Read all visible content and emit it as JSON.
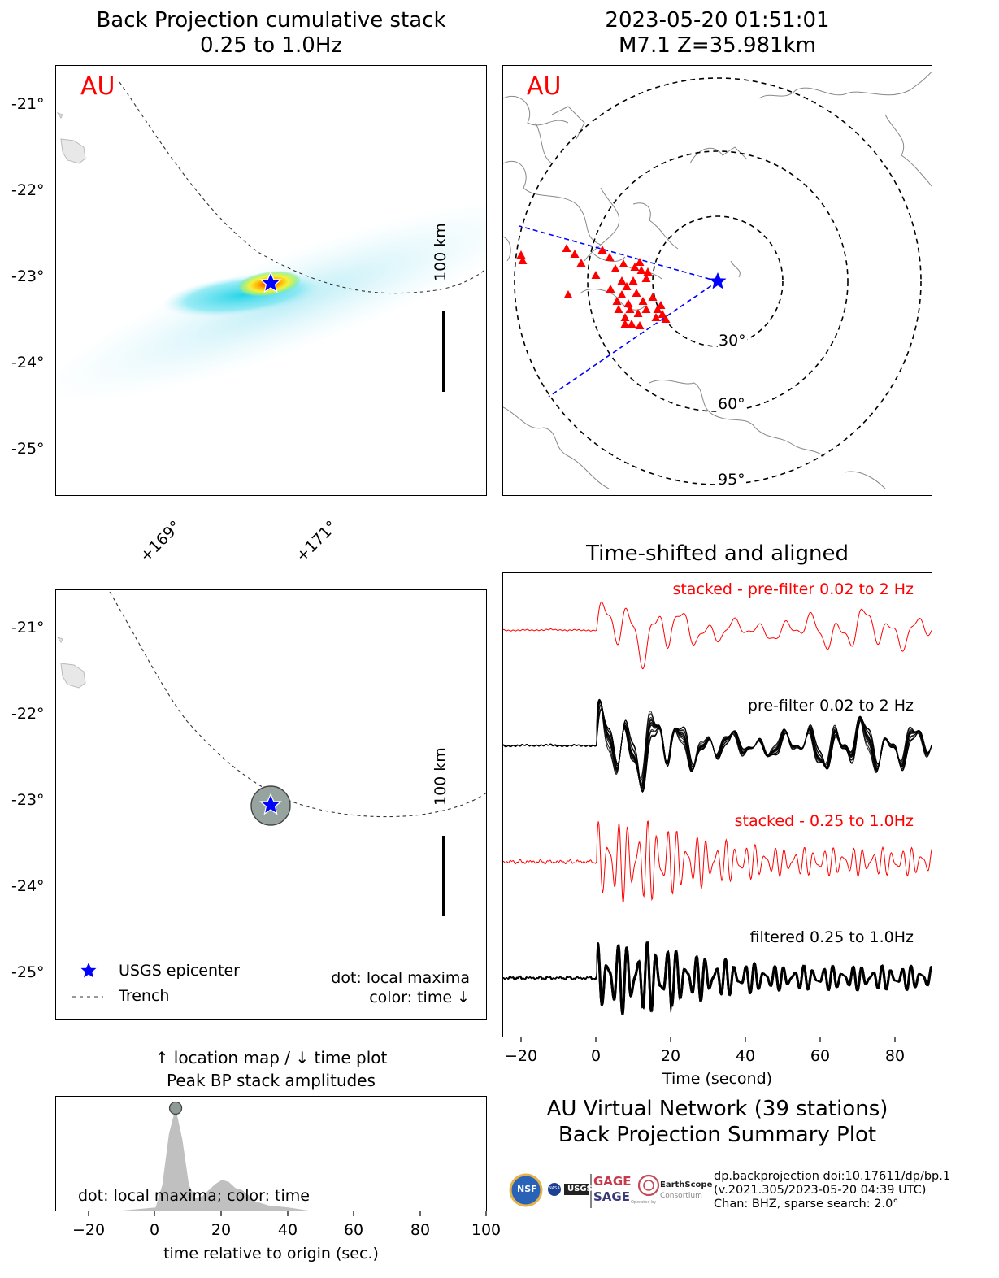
{
  "bp_map": {
    "title_line1": "Back Projection cumulative stack",
    "title_line2": "0.25 to 1.0Hz",
    "network_label": "AU",
    "lat_ticks": [
      "-21°",
      "-22°",
      "-23°",
      "-24°",
      "-25°"
    ],
    "lon_ticks": [
      "+169°",
      "+171°"
    ],
    "scale_label": "100 km"
  },
  "event_map": {
    "title_line1": "2023-05-20 01:51:01",
    "title_line2": "M7.1 Z=35.981km",
    "network_label": "AU",
    "ring_labels": [
      "30°",
      "60°",
      "95°"
    ]
  },
  "location_map": {
    "lat_ticks": [
      "-21°",
      "-22°",
      "-23°",
      "-24°",
      "-25°"
    ],
    "scale_label": "100 km",
    "legend_epicenter": "USGS epicenter",
    "legend_trench": "Trench",
    "note_line1": "dot: local maxima",
    "note_line2": "color: time ↓"
  },
  "waveforms": {
    "title": "Time-shifted and aligned",
    "trace_labels": [
      "stacked - pre-filter 0.02 to 2 Hz",
      "pre-filter 0.02 to 2 Hz",
      "stacked - 0.25 to 1.0Hz",
      "filtered 0.25 to 1.0Hz"
    ],
    "trace_colors": [
      "#ff0000",
      "#000000",
      "#ff0000",
      "#000000"
    ],
    "x_ticks": [
      "−20",
      "0",
      "20",
      "40",
      "60",
      "80"
    ],
    "xlabel": "Time (second)"
  },
  "amp_plot": {
    "title_line1": "↑ location map / ↓ time plot",
    "title_line2": "Peak BP stack amplitudes",
    "note": "dot: local maxima; color: time",
    "x_ticks": [
      "−20",
      "0",
      "20",
      "40",
      "60",
      "80",
      "100"
    ],
    "xlabel": "time relative to origin (sec.)"
  },
  "summary": {
    "line1": "AU Virtual Network (39 stations)",
    "line2": "Back Projection Summary Plot",
    "info_line1": "dp.backprojection doi:10.17611/dp/bp.1",
    "info_line2": "(v.2021.305/2023-05-20 04:39 UTC)",
    "info_line3": "Chan: BHZ, sparse search: 2.0°",
    "logo_gage": "GAGE",
    "logo_sage": "SAGE",
    "logo_nsf": "NSF",
    "logo_nasa": "NASA",
    "logo_usgs": "USGS",
    "logo_earthscope": "EarthScope",
    "logo_consortium": "Consortium",
    "logo_operated": "Operated by"
  },
  "chart_data": [
    {
      "type": "heatmap",
      "name": "back projection cumulative stack",
      "lat_ticks": [
        -21,
        -22,
        -23,
        -24,
        -25
      ],
      "lon_ticks": [
        169,
        171
      ],
      "epicenter": {
        "lon": 170.4,
        "lat": -23.1
      },
      "peak_region": {
        "lon": 170.4,
        "lat": -23.1
      }
    },
    {
      "type": "scatter",
      "name": "station map",
      "ring_distances_deg": [
        30,
        60,
        95
      ],
      "station_count": 39
    },
    {
      "type": "line",
      "name": "aligned traces",
      "x_axis": "Time (second)",
      "xlim": [
        -25,
        90
      ],
      "x_ticks": [
        -20,
        0,
        20,
        40,
        60,
        80
      ]
    },
    {
      "type": "area",
      "name": "peak BP stack amplitudes",
      "x_axis": "time relative to origin (sec.)",
      "xlim": [
        -30,
        100
      ],
      "x_ticks": [
        -20,
        0,
        20,
        40,
        60,
        80,
        100
      ],
      "peak": {
        "time": 6,
        "amplitude": 1.0
      },
      "points": [
        [
          -30,
          0
        ],
        [
          -10,
          0
        ],
        [
          0,
          0.03
        ],
        [
          2,
          0.25
        ],
        [
          4,
          0.75
        ],
        [
          6,
          1.0
        ],
        [
          8,
          0.7
        ],
        [
          10,
          0.25
        ],
        [
          12,
          0.12
        ],
        [
          14,
          0.14
        ],
        [
          16,
          0.2
        ],
        [
          18,
          0.26
        ],
        [
          20,
          0.3
        ],
        [
          22,
          0.28
        ],
        [
          24,
          0.22
        ],
        [
          26,
          0.2
        ],
        [
          28,
          0.15
        ],
        [
          30,
          0.09
        ],
        [
          34,
          0.05
        ],
        [
          40,
          0.03
        ],
        [
          46,
          0
        ],
        [
          100,
          0
        ]
      ]
    }
  ]
}
